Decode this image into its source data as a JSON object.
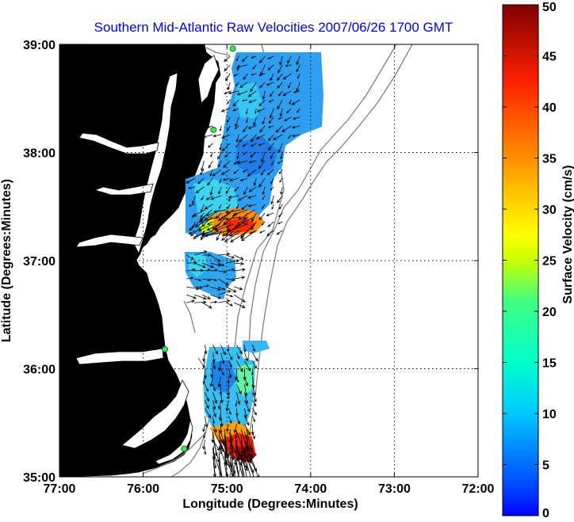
{
  "chart_data": {
    "type": "heatmap",
    "title": "Southern Mid-Atlantic Raw Velocities 2007/06/26 1700 GMT",
    "xlabel": "Longitude (Degrees:Minutes)",
    "ylabel": "Latitude (Degrees:Minutes)",
    "xlim": [
      -77,
      -72
    ],
    "ylim": [
      35,
      39
    ],
    "x_ticks": [
      -77,
      -76,
      -75,
      -74,
      -73,
      -72
    ],
    "x_tick_labels": [
      "77:00",
      "76:00",
      "75:00",
      "74:00",
      "73:00",
      "72:00"
    ],
    "y_ticks": [
      35,
      36,
      37,
      38,
      39
    ],
    "y_tick_labels": [
      "35:00",
      "36:00",
      "37:00",
      "38:00",
      "39:00"
    ],
    "grid": true,
    "colorbar": {
      "label": "Surface Velocity (cm/s)",
      "range": [
        0,
        50
      ],
      "ticks": [
        0,
        5,
        10,
        15,
        20,
        25,
        30,
        35,
        40,
        45,
        50
      ],
      "colormap": "jet"
    },
    "land_color": "#5cf4a4",
    "stations": [
      {
        "lon": -74.93,
        "lat": 38.96
      },
      {
        "lon": -75.16,
        "lat": 38.21
      },
      {
        "lon": -75.74,
        "lat": 36.18
      },
      {
        "lon": -75.51,
        "lat": 35.26
      }
    ],
    "regions": [
      {
        "name": "north",
        "lon": [
          -75.52,
          -74.05
        ],
        "lat": [
          37.23,
          38.92
        ],
        "speed": [
          2,
          13
        ]
      },
      {
        "name": "north-jet",
        "lon": [
          -75.3,
          -74.6
        ],
        "lat": [
          37.22,
          37.5
        ],
        "speed": [
          20,
          40
        ]
      },
      {
        "name": "middle",
        "lon": [
          -75.52,
          -74.88
        ],
        "lat": [
          36.6,
          37.08
        ],
        "speed": [
          4,
          14
        ]
      },
      {
        "name": "south",
        "lon": [
          -75.3,
          -74.65
        ],
        "lat": [
          35.2,
          36.25
        ],
        "speed": [
          4,
          15
        ]
      },
      {
        "name": "south-jet",
        "lon": [
          -75.2,
          -74.75
        ],
        "lat": [
          35.1,
          35.47
        ],
        "speed": [
          30,
          50
        ]
      }
    ]
  }
}
